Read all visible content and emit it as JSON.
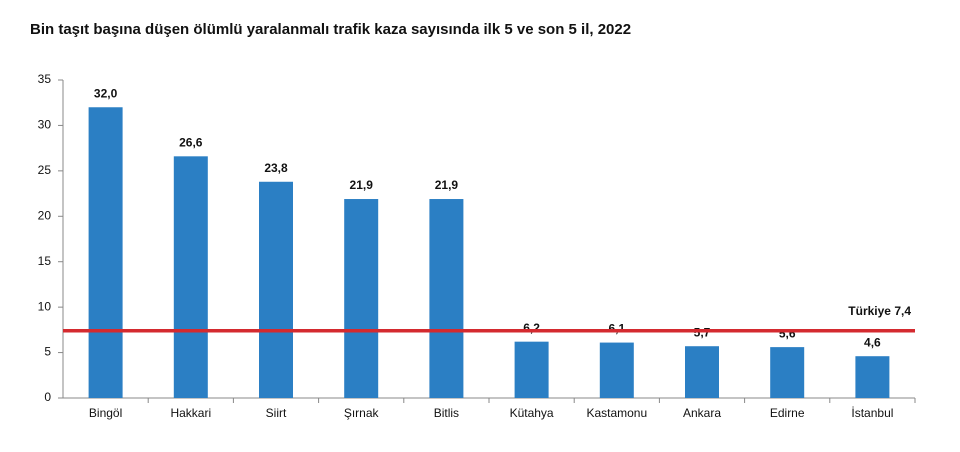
{
  "chart_data": {
    "type": "bar",
    "title": "Bin taşıt başına düşen ölümlü yaralanmalı trafik kaza sayısında ilk 5 ve son 5 il, 2022",
    "categories": [
      "Bingöl",
      "Hakkari",
      "Siirt",
      "Şırnak",
      "Bitlis",
      "Kütahya",
      "Kastamonu",
      "Ankara",
      "Edirne",
      "İstanbul"
    ],
    "values": [
      32.0,
      26.6,
      23.8,
      21.9,
      21.9,
      6.2,
      6.1,
      5.7,
      5.6,
      4.6
    ],
    "value_labels": [
      "32,0",
      "26,6",
      "23,8",
      "21,9",
      "21,9",
      "6,2",
      "6,1",
      "5,7",
      "5,6",
      "4,6"
    ],
    "color": "#2b7fc4",
    "ylim": [
      0,
      35
    ],
    "yticks": [
      0,
      5,
      10,
      15,
      20,
      25,
      30,
      35
    ],
    "grid": false,
    "reference_line": {
      "value": 7.4,
      "label": "Türkiye 7,4",
      "color": "#d42a2f"
    }
  }
}
